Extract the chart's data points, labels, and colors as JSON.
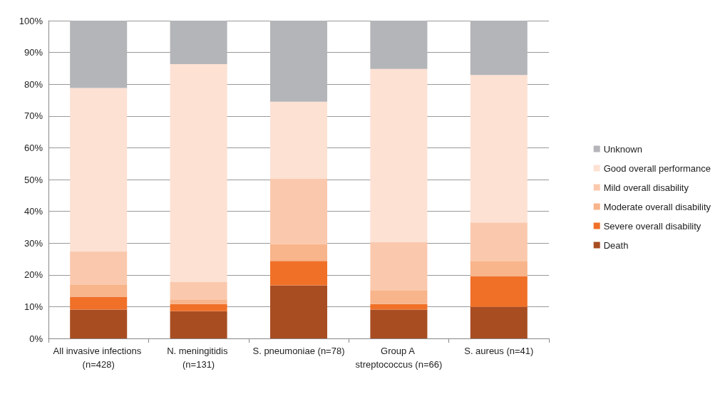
{
  "chart_data": {
    "type": "bar",
    "stacked": true,
    "categories": [
      "All invasive infections (n=428)",
      "N. meningitidis (n=131)",
      "S. pneumoniae (n=78)",
      "Group A streptococcus (n=66)",
      "S. aureus (n=41)"
    ],
    "series": [
      {
        "name": "Death",
        "color": "#a84d22",
        "values": [
          9.1,
          8.6,
          16.7,
          9.1,
          9.9
        ]
      },
      {
        "name": "Severe overall disability",
        "color": "#f07028",
        "values": [
          4.0,
          2.2,
          7.7,
          1.7,
          9.7
        ]
      },
      {
        "name": "Moderate overall disability",
        "color": "#f8b48a",
        "values": [
          3.9,
          1.5,
          5.3,
          4.4,
          4.8
        ]
      },
      {
        "name": "Mild overall disability",
        "color": "#fac9ad",
        "values": [
          10.4,
          5.4,
          20.5,
          15.2,
          12.1
        ]
      },
      {
        "name": "Good overall performance",
        "color": "#fde1d3",
        "values": [
          51.4,
          68.6,
          24.3,
          54.4,
          46.4
        ]
      },
      {
        "name": "Unknown",
        "color": "#b4b5b8",
        "values": [
          21.2,
          13.7,
          25.5,
          15.2,
          17.1
        ]
      }
    ],
    "ylim": [
      0,
      100
    ],
    "yticks": [
      {
        "value": 0,
        "label": "0%"
      },
      {
        "value": 10,
        "label": "10%"
      },
      {
        "value": 20,
        "label": "20%"
      },
      {
        "value": 30,
        "label": "30%"
      },
      {
        "value": 40,
        "label": "40%"
      },
      {
        "value": 50,
        "label": "50%"
      },
      {
        "value": 60,
        "label": "60%"
      },
      {
        "value": 70,
        "label": "70%"
      },
      {
        "value": 80,
        "label": "80%"
      },
      {
        "value": 90,
        "label": "90%"
      },
      {
        "value": 100,
        "label": "100%"
      }
    ],
    "grid": "y",
    "legend": "right"
  }
}
